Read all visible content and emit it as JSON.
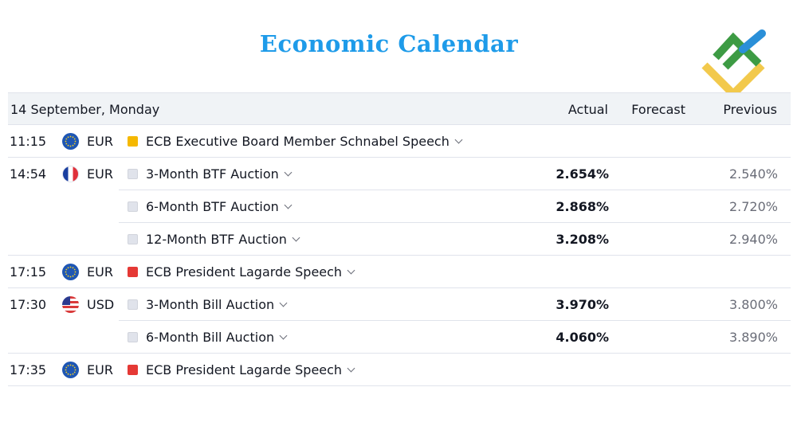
{
  "title": "Economic Calendar",
  "header": {
    "date": "14 September, Monday",
    "actual": "Actual",
    "forecast": "Forecast",
    "previous": "Previous"
  },
  "colors": {
    "title": "#1e9be9",
    "importance_low": "#e0e3eb",
    "importance_medium": "#f5b800",
    "importance_high": "#e53935",
    "logo_green": "#3d9b44",
    "logo_blue": "#2a8fd8",
    "logo_yellow": "#f2c94c"
  },
  "events": [
    {
      "time": "11:15",
      "flag": "eu-flag-icon",
      "currency": "EUR",
      "importance": "medium",
      "event": "ECB Executive Board Member Schnabel Speech",
      "actual": "",
      "forecast": "",
      "previous": ""
    },
    {
      "time": "14:54",
      "flag": "fr-flag-icon",
      "currency": "EUR",
      "importance": "low",
      "event": "3-Month BTF Auction",
      "actual": "2.654%",
      "forecast": "",
      "previous": "2.540%"
    },
    {
      "time": "",
      "flag": "",
      "currency": "",
      "importance": "low",
      "event": "6-Month BTF Auction",
      "actual": "2.868%",
      "forecast": "",
      "previous": "2.720%"
    },
    {
      "time": "",
      "flag": "",
      "currency": "",
      "importance": "low",
      "event": "12-Month BTF Auction",
      "actual": "3.208%",
      "forecast": "",
      "previous": "2.940%"
    },
    {
      "time": "17:15",
      "flag": "eu-flag-icon",
      "currency": "EUR",
      "importance": "high",
      "event": "ECB President Lagarde Speech",
      "actual": "",
      "forecast": "",
      "previous": ""
    },
    {
      "time": "17:30",
      "flag": "us-flag-icon",
      "currency": "USD",
      "importance": "low",
      "event": "3-Month Bill Auction",
      "actual": "3.970%",
      "forecast": "",
      "previous": "3.800%"
    },
    {
      "time": "",
      "flag": "",
      "currency": "",
      "importance": "low",
      "event": "6-Month Bill Auction",
      "actual": "4.060%",
      "forecast": "",
      "previous": "3.890%"
    },
    {
      "time": "17:35",
      "flag": "eu-flag-icon",
      "currency": "EUR",
      "importance": "high",
      "event": "ECB President Lagarde Speech",
      "actual": "",
      "forecast": "",
      "previous": ""
    }
  ]
}
